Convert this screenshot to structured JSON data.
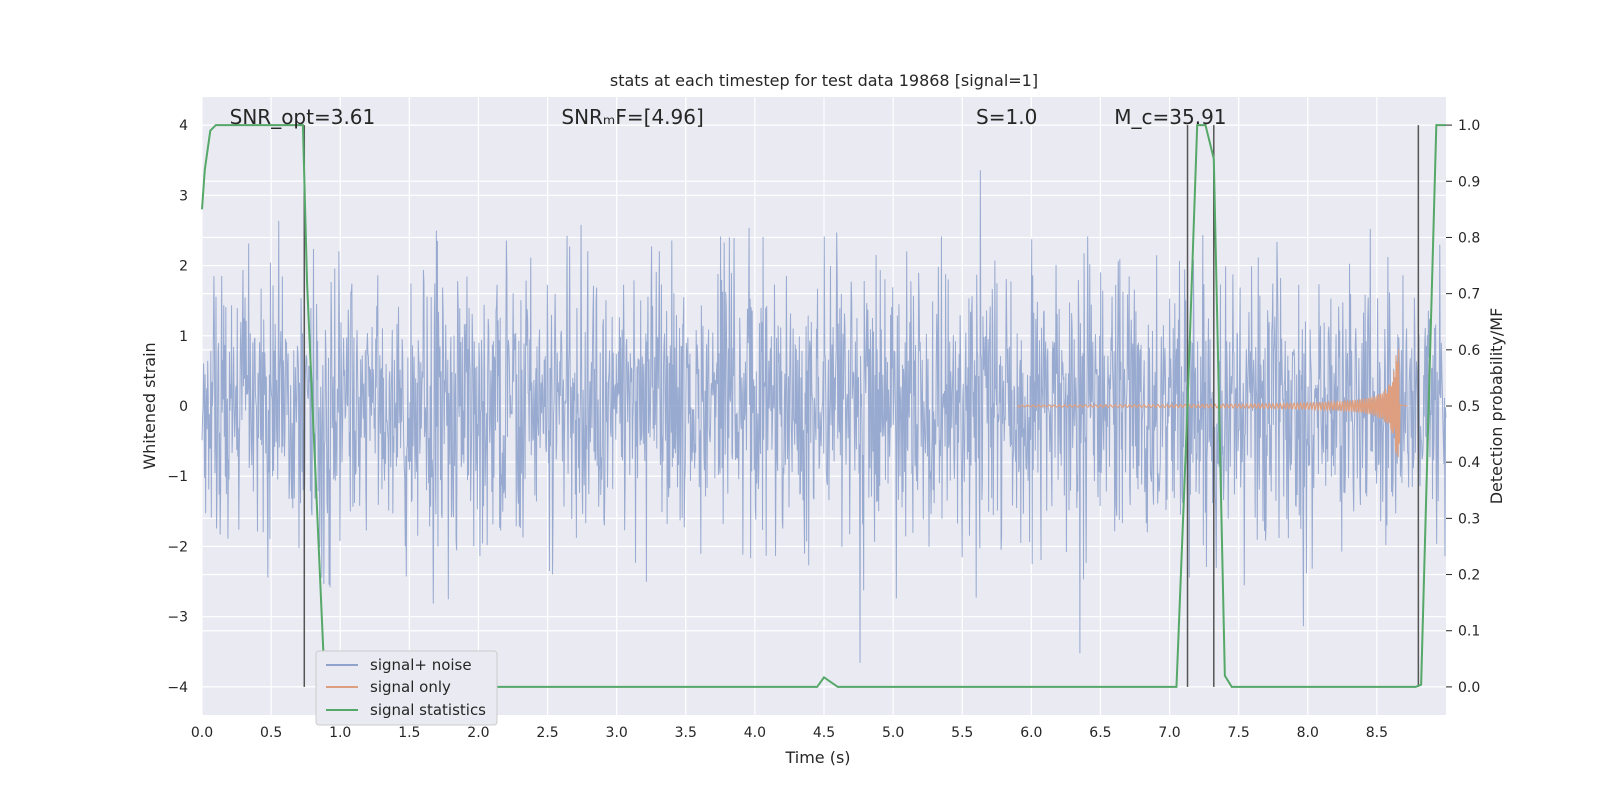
{
  "chart_data": {
    "type": "line",
    "title": "stats at each timestep for test data 19868 [signal=1]",
    "xlabel": "Time (s)",
    "ylabel": "Whitened strain",
    "ylabel_right": "Detection probability/MF",
    "xlim": [
      0.0,
      9.0
    ],
    "ylim": [
      -4.4,
      4.4
    ],
    "ylim_right": [
      -0.05,
      1.05
    ],
    "xticks": [
      0.0,
      0.5,
      1.0,
      1.5,
      2.0,
      2.5,
      3.0,
      3.5,
      4.0,
      4.5,
      5.0,
      5.5,
      6.0,
      6.5,
      7.0,
      7.5,
      8.0,
      8.5
    ],
    "xtick_labels": [
      "0.0",
      "0.5",
      "1.0",
      "1.5",
      "2.0",
      "2.5",
      "3.0",
      "3.5",
      "4.0",
      "4.5",
      "5.0",
      "5.5",
      "6.0",
      "6.5",
      "7.0",
      "7.5",
      "8.0",
      "8.5"
    ],
    "yticks": [
      4,
      3,
      2,
      1,
      0,
      -1,
      -2,
      -3,
      -4
    ],
    "ytick_labels": [
      "4",
      "3",
      "2",
      "1",
      "0",
      "−1",
      "−2",
      "−3",
      "−4"
    ],
    "yticks_right": [
      1.0,
      0.9,
      0.8,
      0.7,
      0.6,
      0.5,
      0.4,
      0.3,
      0.2,
      0.1,
      0.0
    ],
    "ytick_labels_right": [
      "1.0",
      "0.9",
      "0.8",
      "0.7",
      "0.6",
      "0.5",
      "0.4",
      "0.3",
      "0.2",
      "0.1",
      "0.0"
    ],
    "grid": true,
    "legend_position": "lower-left",
    "annotations": [
      {
        "text": "SNR_opt=3.61",
        "x": 0.2
      },
      {
        "text": "SNRₘF=[4.96]",
        "x": 2.6
      },
      {
        "text": "S=1.0",
        "x": 5.6
      },
      {
        "text": "M_c=35.91",
        "x": 6.6
      }
    ],
    "series": [
      {
        "name": "signal+ noise",
        "color": "#8fa3cc",
        "style": "noise band, amplitude ~±1.8 with spikes to ±4"
      },
      {
        "name": "signal only",
        "color": "#dd9f80",
        "style": "chirp growing to ±0.9 near t=8.65",
        "chirp": {
          "start": 5.9,
          "peak": 8.65,
          "end": 8.72,
          "amplitude": 0.9
        }
      },
      {
        "name": "signal statistics",
        "color": "#55a868",
        "axis": "right",
        "x": [
          0.0,
          0.02,
          0.06,
          0.1,
          0.72,
          0.73,
          0.76,
          0.88,
          0.9,
          4.45,
          4.5,
          4.6,
          7.05,
          7.13,
          7.2,
          7.26,
          7.32,
          7.4,
          7.45,
          8.78,
          8.82,
          8.88,
          8.93,
          9.0
        ],
        "y": [
          0.85,
          0.92,
          0.99,
          1.0,
          1.0,
          1.0,
          0.72,
          0.05,
          0.0,
          0.0,
          0.017,
          0.0,
          0.0,
          0.5,
          1.0,
          1.0,
          0.94,
          0.02,
          0.0,
          0.0,
          0.004,
          0.55,
          1.0,
          1.0
        ]
      }
    ],
    "vertical_markers": [
      0.74,
      7.13,
      7.32,
      8.8
    ]
  }
}
